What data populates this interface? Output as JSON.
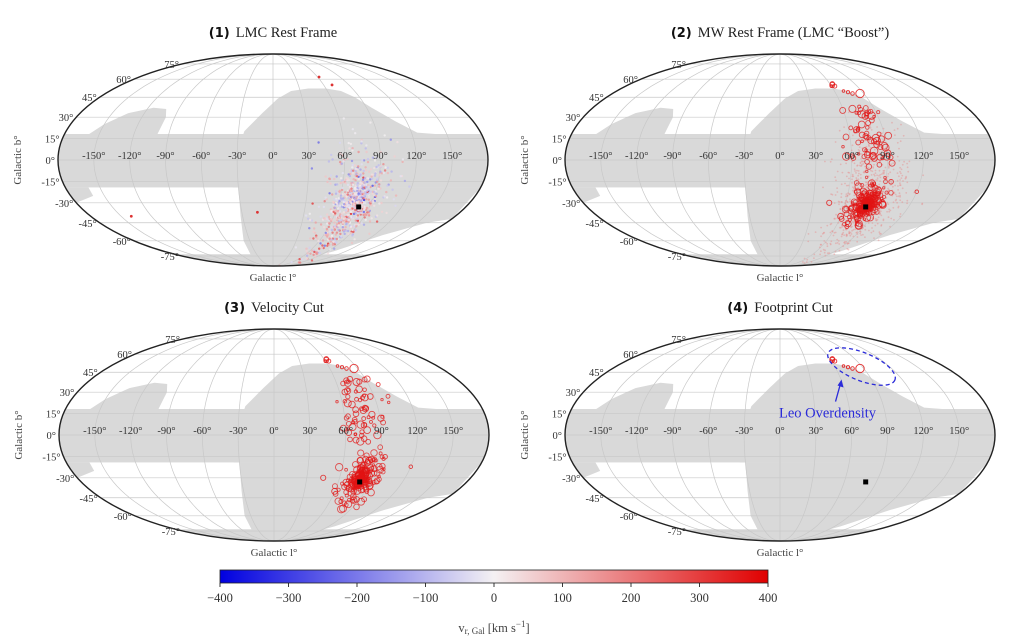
{
  "figure": {
    "colorbar": {
      "label_main": "v",
      "label_sub": "r, Gal",
      "label_unit": "[km s",
      "label_exp": "−1",
      "label_close": "]",
      "ticks": [
        "−400",
        "−300",
        "−200",
        "−100",
        "0",
        "100",
        "200",
        "300",
        "400"
      ]
    }
  },
  "chart_data": [
    {
      "type": "scatter",
      "projection": "mollweide",
      "panel": "(1)",
      "title": "LMC Rest Frame",
      "xlabel": "Galactic l°",
      "ylabel": "Galactic b°",
      "xticks": [
        "-150°",
        "-120°",
        "-90°",
        "-60°",
        "-30°",
        "0°",
        "30°",
        "60°",
        "90°",
        "120°",
        "150°"
      ],
      "yticks": [
        "75°",
        "60°",
        "45°",
        "30°",
        "15°",
        "0°",
        "-15°",
        "-30°",
        "-45°",
        "-60°",
        "-75°"
      ],
      "lmc_center": {
        "l": 80,
        "b": -33
      },
      "points_description": "~800 small dots centred on LMC, mixed blue/red (velocities roughly -150 to +250 km/s)",
      "color_by": "v_r,Gal"
    },
    {
      "type": "scatter",
      "projection": "mollweide",
      "panel": "(2)",
      "title": "MW Rest Frame (LMC “Boost”)",
      "xlabel": "Galactic l°",
      "ylabel": "Galactic b°",
      "xticks": [
        "-150°",
        "-120°",
        "-90°",
        "-60°",
        "-30°",
        "0°",
        "30°",
        "60°",
        "90°",
        "120°",
        "150°"
      ],
      "yticks": [
        "75°",
        "60°",
        "45°",
        "30°",
        "15°",
        "0°",
        "-15°",
        "-30°",
        "-45°",
        "-60°",
        "-75°"
      ],
      "lmc_center": {
        "l": 80,
        "b": -33
      },
      "points_description": "Mostly red points (v ~ +200 to +400 km/s); large open circles for high-velocity stars, dense cluster at LMC and a trail toward l~70°, b~+50°",
      "color_by": "v_r,Gal"
    },
    {
      "type": "scatter",
      "projection": "mollweide",
      "panel": "(3)",
      "title": "Velocity Cut",
      "xlabel": "Galactic l°",
      "ylabel": "Galactic b°",
      "xticks": [
        "-150°",
        "-120°",
        "-90°",
        "-60°",
        "-30°",
        "0°",
        "30°",
        "60°",
        "90°",
        "120°",
        "150°"
      ],
      "yticks": [
        "75°",
        "60°",
        "45°",
        "30°",
        "15°",
        "0°",
        "-15°",
        "-30°",
        "-45°",
        "-60°",
        "-75°"
      ],
      "lmc_center": {
        "l": 80,
        "b": -33
      },
      "points_description": "Only high-velocity red open circles retained; cluster at LMC plus trail up to l~70°, b~+55°",
      "color_by": "v_r,Gal"
    },
    {
      "type": "scatter",
      "projection": "mollweide",
      "panel": "(4)",
      "title": "Footprint Cut",
      "xlabel": "Galactic l°",
      "ylabel": "Galactic b°",
      "xticks": [
        "-150°",
        "-120°",
        "-90°",
        "-60°",
        "-30°",
        "0°",
        "30°",
        "60°",
        "90°",
        "120°",
        "150°"
      ],
      "yticks": [
        "75°",
        "60°",
        "45°",
        "30°",
        "15°",
        "0°",
        "-15°",
        "-30°",
        "-45°",
        "-60°",
        "-75°"
      ],
      "lmc_center": {
        "l": 80,
        "b": -33
      },
      "annotation": "Leo Overdensity",
      "points_description": "Only the ~8 stars near l~60–85°, b~+50–57° remain, circled by dashed blue ellipse",
      "color_by": "v_r,Gal"
    }
  ]
}
